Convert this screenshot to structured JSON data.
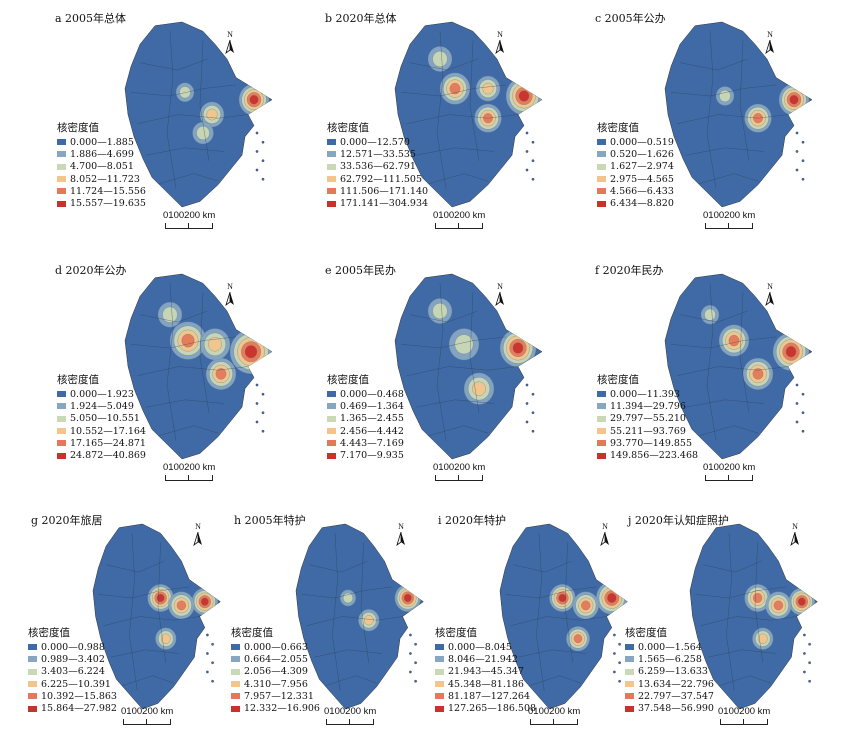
{
  "legend_title": "核密度值",
  "scale_labels": [
    "0",
    "100",
    "200 km"
  ],
  "north_label": "N",
  "colors": [
    "#3f6aa6",
    "#86a6c2",
    "#c9d8b5",
    "#f3c58c",
    "#e3795a",
    "#c8322b"
  ],
  "panels": [
    {
      "title": "a 2005年总体",
      "classes": [
        "0.000—1.885",
        "1.886—4.699",
        "4.700—8.051",
        "8.052—11.723",
        "11.724—15.556",
        "15.557—19.635"
      ]
    },
    {
      "title": "b 2020年总体",
      "classes": [
        "0.000—12.570",
        "12.571—33.535",
        "33.536—62.791",
        "62.792—111.505",
        "111.506—171.140",
        "171.141—304.934"
      ]
    },
    {
      "title": "c 2005年公办",
      "classes": [
        "0.000—0.519",
        "0.520—1.626",
        "1.627—2.974",
        "2.975—4.565",
        "4.566—6.433",
        "6.434—8.820"
      ]
    },
    {
      "title": "d 2020年公办",
      "classes": [
        "0.000—1.923",
        "1.924—5.049",
        "5.050—10.551",
        "10.552—17.164",
        "17.165—24.871",
        "24.872—40.869"
      ]
    },
    {
      "title": "e 2005年民办",
      "classes": [
        "0.000—0.468",
        "0.469—1.364",
        "1.365—2.455",
        "2.456—4.442",
        "4.443—7.169",
        "7.170—9.935"
      ]
    },
    {
      "title": "f 2020年民办",
      "classes": [
        "0.000—11.393",
        "11.394—29.796",
        "29.797—55.210",
        "55.211—93.769",
        "93.770—149.855",
        "149.856—223.468"
      ]
    },
    {
      "title": "g 2020年旅居",
      "classes": [
        "0.000—0.988",
        "0.989—3.402",
        "3.403—6.224",
        "6.225—10.391",
        "10.392—15.863",
        "15.864—27.982"
      ]
    },
    {
      "title": "h 2005年特护",
      "classes": [
        "0.000—0.663",
        "0.664—2.055",
        "2.056—4.309",
        "4.310—7.956",
        "7.957—12.331",
        "12.332—16.906"
      ]
    },
    {
      "title": "i 2020年特护",
      "classes": [
        "0.000—8.045",
        "8.046—21.942",
        "21.943—45.347",
        "45.348—81.186",
        "81.187—127.264",
        "127.265—186.508"
      ]
    },
    {
      "title": "j 2020年认知症照护",
      "classes": [
        "0.000—1.564",
        "1.565—6.258",
        "6.259—13.633",
        "13.634—22.796",
        "22.797—37.547",
        "37.548—56.990"
      ]
    }
  ]
}
